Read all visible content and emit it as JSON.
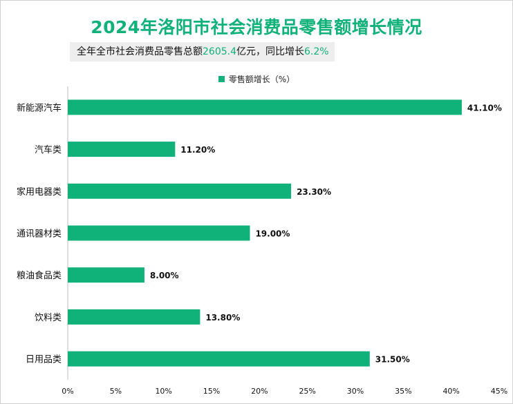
{
  "header": {
    "title": "2024年洛阳市社会消费品零售额增长情况",
    "subtitle_prefix": "全年全市社会消费品零售总额",
    "subtitle_value": "2605.4",
    "subtitle_mid": "亿元，同比增长",
    "subtitle_growth": "6.2%"
  },
  "colors": {
    "accent": "#10b27a"
  },
  "chart_data": {
    "type": "bar",
    "orientation": "horizontal",
    "title": "2024年洛阳市社会消费品零售额增长情况",
    "legend": {
      "position": "top",
      "entries": [
        "零售额增长（%）"
      ]
    },
    "categories": [
      "新能源汽车",
      "汽车类",
      "家用电器类",
      "通讯器材类",
      "粮油食品类",
      "饮料类",
      "日用品类"
    ],
    "series": [
      {
        "name": "零售额增长（%）",
        "values": [
          41.1,
          11.2,
          23.3,
          19.0,
          8.0,
          13.8,
          31.5
        ],
        "labels": [
          "41.10%",
          "11.20%",
          "23.30%",
          "19.00%",
          "8.00%",
          "13.80%",
          "31.50%"
        ]
      }
    ],
    "xlim": [
      0,
      45
    ],
    "xticks": [
      0,
      5,
      10,
      15,
      20,
      25,
      30,
      35,
      40,
      45
    ],
    "xtick_labels": [
      "0%",
      "5%",
      "10%",
      "15%",
      "20%",
      "25%",
      "30%",
      "35%",
      "40%",
      "45%"
    ],
    "grid": false
  }
}
